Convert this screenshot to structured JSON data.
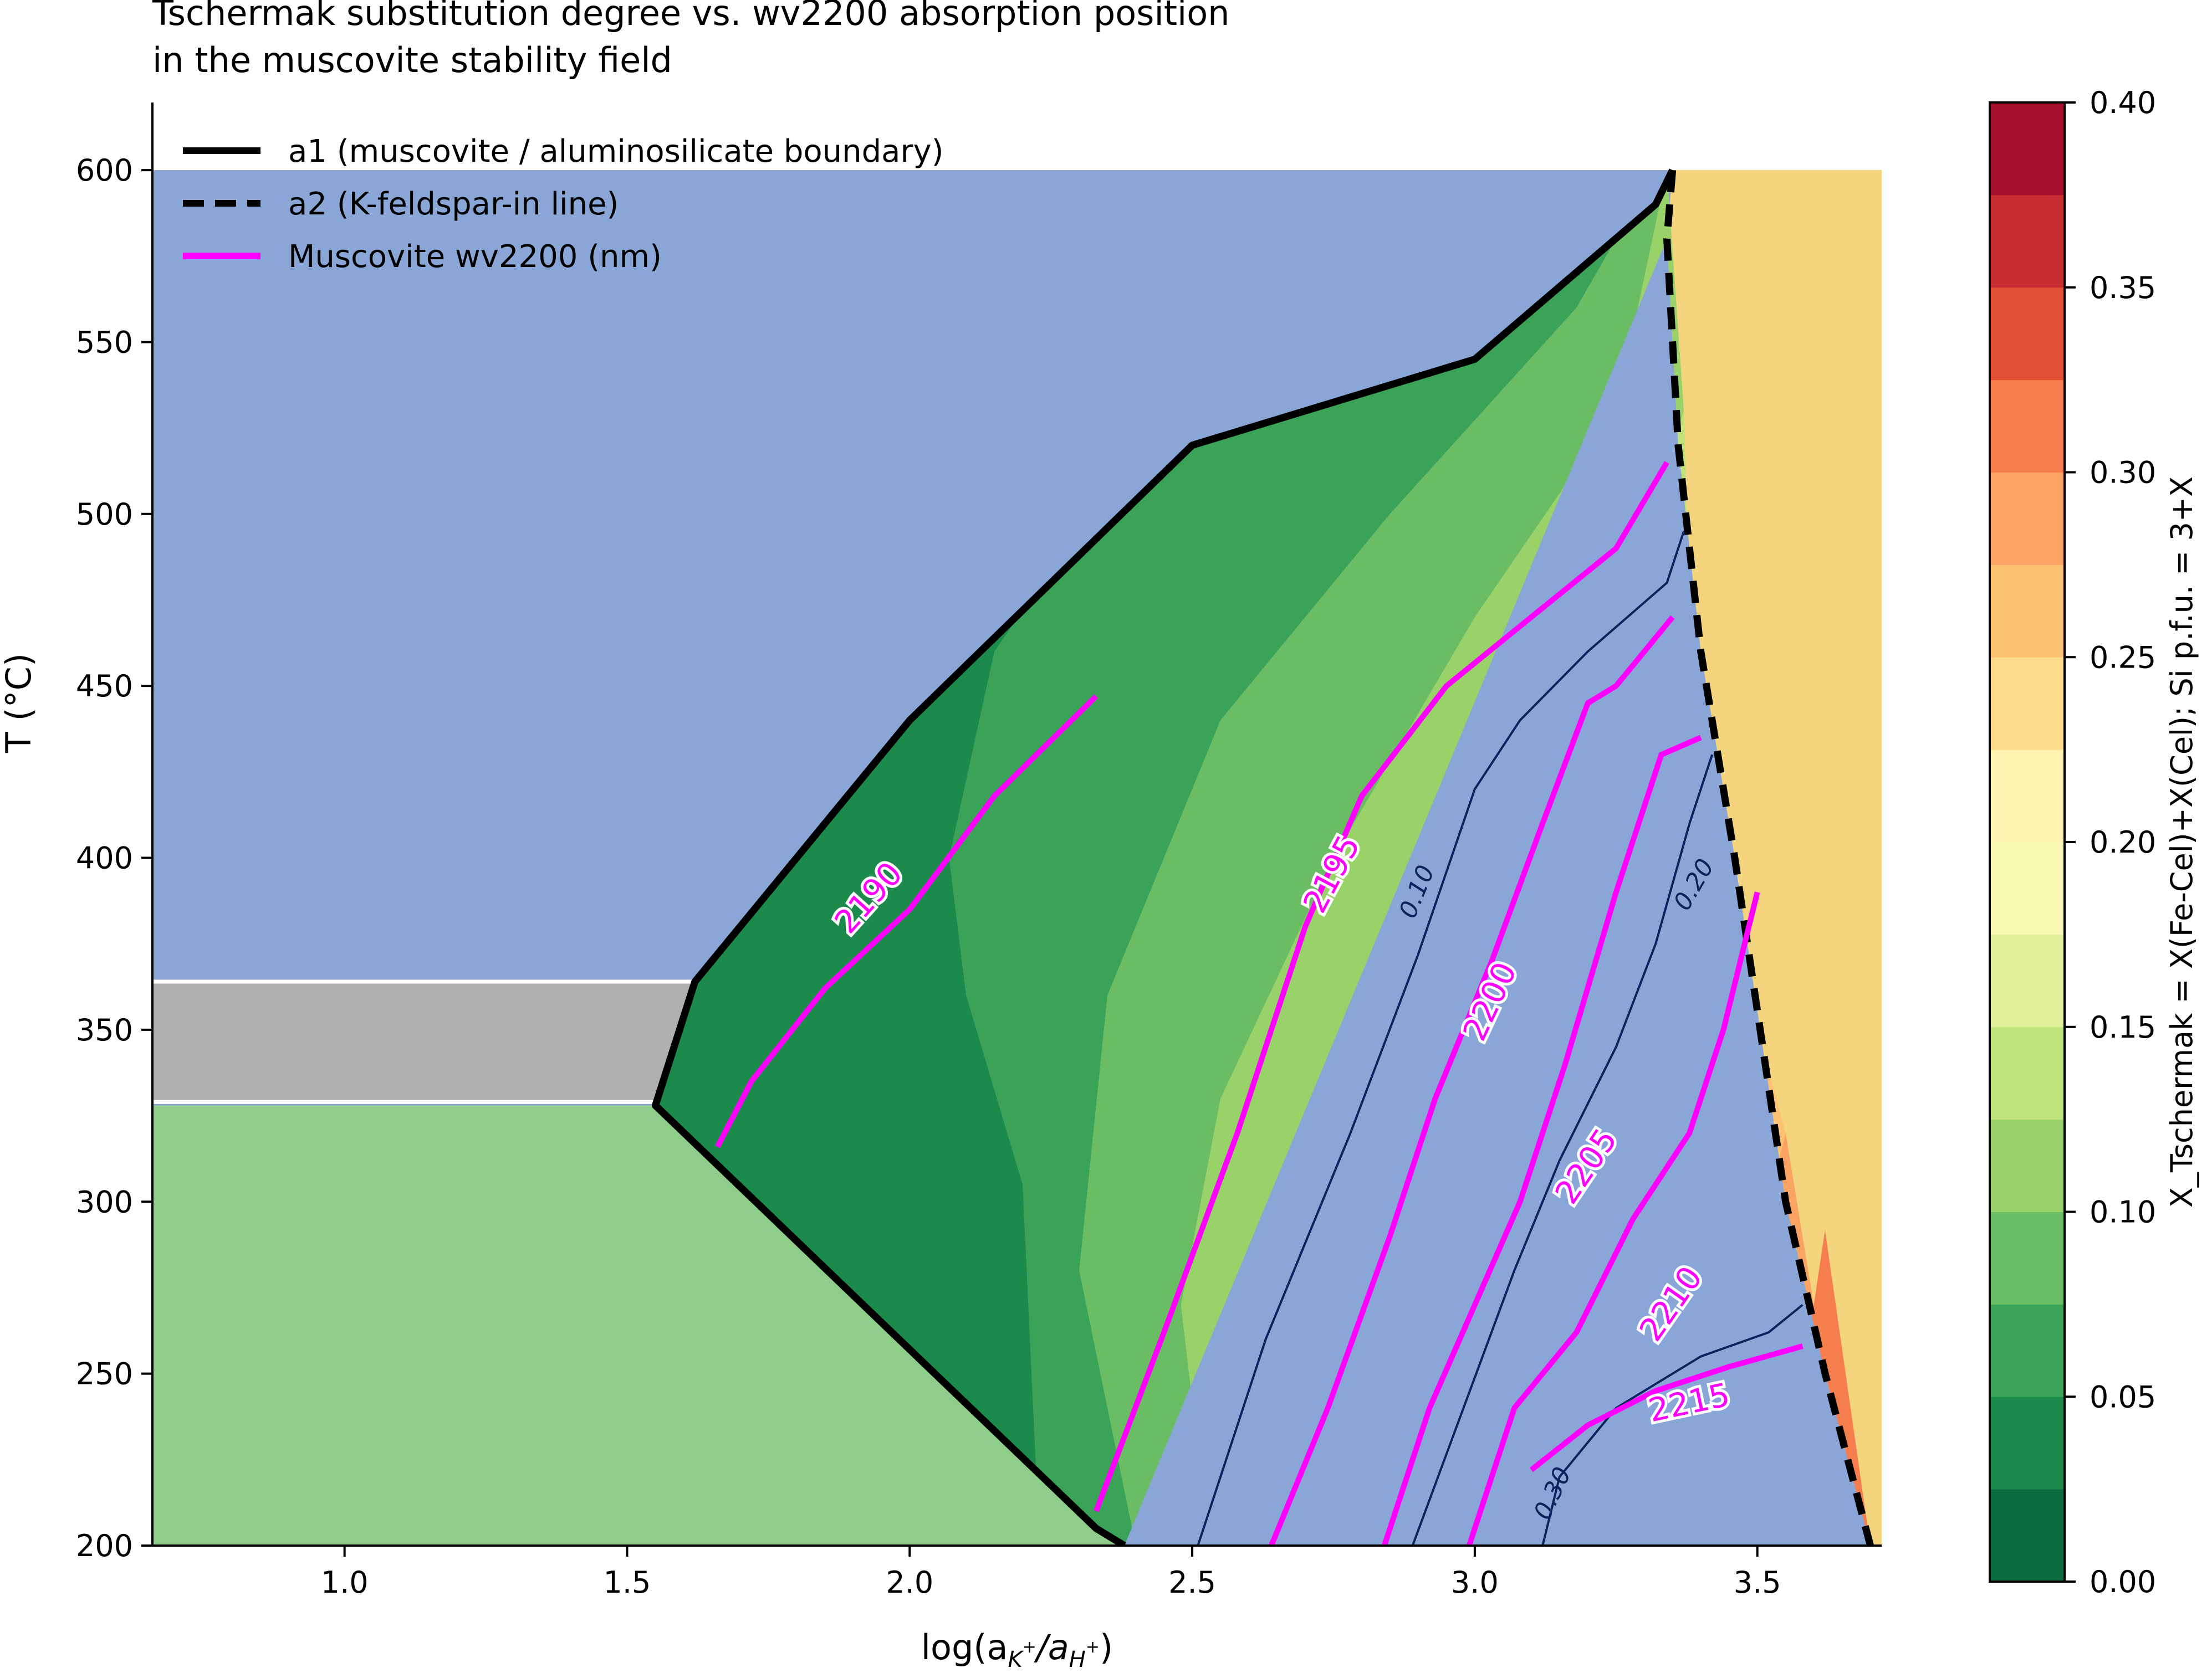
{
  "chart_data": {
    "type": "contour",
    "title_lines": [
      "Tschermak substitution degree vs. wv2200 absorption position",
      "in the muscovite stability field"
    ],
    "xlabel": "log(a",
    "xlabel_sub1": "K",
    "xlabel_mid": "/a",
    "xlabel_sub2": "H",
    "xlabel_end": ")",
    "xlabel_sup": "+",
    "ylabel": "T (°C)",
    "xlim": [
      0.66,
      3.72
    ],
    "ylim": [
      200,
      610
    ],
    "xticks": [
      1.0,
      1.5,
      2.0,
      2.5,
      3.0,
      3.5
    ],
    "xtick_labels": [
      "1.0",
      "1.5",
      "2.0",
      "2.5",
      "3.0",
      "3.5"
    ],
    "yticks": [
      200,
      250,
      300,
      350,
      400,
      450,
      500,
      550,
      600
    ],
    "ytick_labels": [
      "200",
      "250",
      "300",
      "350",
      "400",
      "450",
      "500",
      "550",
      "600"
    ],
    "grid": false,
    "legend_position": "top-left",
    "legend": [
      {
        "label": "a1 (muscovite / aluminosilicate boundary)",
        "style": "solid",
        "color": "#000000"
      },
      {
        "label": "a2 (K-feldspar-in line)",
        "style": "dashed",
        "color": "#000000"
      },
      {
        "label": "Muscovite wv2200 (nm)",
        "style": "solid",
        "color": "#ff00ff"
      }
    ],
    "background_fields": {
      "aluminosilicate_color": "#8aa6d6",
      "gray_band_color": "#b0b0b0",
      "gray_band_T": [
        329,
        364
      ],
      "kaolinite_side_color": "#8ece8a",
      "kfeldspar_color": "#f4d47c"
    },
    "boundary_a1": [
      [
        2.38,
        200
      ],
      [
        2.33,
        205
      ],
      [
        1.55,
        328
      ],
      [
        1.62,
        364
      ],
      [
        2.0,
        440
      ],
      [
        2.5,
        520
      ],
      [
        3.0,
        545
      ],
      [
        3.32,
        590
      ],
      [
        3.35,
        600
      ]
    ],
    "boundary_a2": [
      [
        3.35,
        600
      ],
      [
        3.34,
        580
      ],
      [
        3.36,
        520
      ],
      [
        3.4,
        460
      ],
      [
        3.46,
        400
      ],
      [
        3.55,
        300
      ],
      [
        3.62,
        250
      ],
      [
        3.7,
        200
      ]
    ],
    "wv2200_isolines": [
      {
        "label": "2190",
        "points": [
          [
            1.66,
            316
          ],
          [
            1.72,
            335
          ],
          [
            1.85,
            362
          ],
          [
            2.0,
            385
          ],
          [
            2.15,
            418
          ],
          [
            2.33,
            447
          ]
        ]
      },
      {
        "label": "2195",
        "points": [
          [
            2.33,
            210
          ],
          [
            2.45,
            262
          ],
          [
            2.58,
            320
          ],
          [
            2.7,
            380
          ],
          [
            2.8,
            418
          ],
          [
            2.95,
            450
          ],
          [
            3.1,
            470
          ],
          [
            3.25,
            490
          ],
          [
            3.34,
            515
          ]
        ]
      },
      {
        "label": "2200",
        "points": [
          [
            2.64,
            200
          ],
          [
            2.74,
            240
          ],
          [
            2.85,
            290
          ],
          [
            2.93,
            330
          ],
          [
            3.03,
            370
          ],
          [
            3.12,
            410
          ],
          [
            3.2,
            445
          ],
          [
            3.25,
            450
          ],
          [
            3.35,
            470
          ]
        ]
      },
      {
        "label": "2205",
        "points": [
          [
            2.84,
            200
          ],
          [
            2.92,
            240
          ],
          [
            3.0,
            270
          ],
          [
            3.08,
            300
          ],
          [
            3.16,
            340
          ],
          [
            3.25,
            390
          ],
          [
            3.33,
            430
          ],
          [
            3.4,
            435
          ]
        ]
      },
      {
        "label": "2210",
        "points": [
          [
            2.99,
            200
          ],
          [
            3.07,
            240
          ],
          [
            3.18,
            262
          ],
          [
            3.28,
            295
          ],
          [
            3.38,
            320
          ],
          [
            3.44,
            350
          ],
          [
            3.5,
            390
          ]
        ]
      },
      {
        "label": "2215",
        "points": [
          [
            3.1,
            222
          ],
          [
            3.2,
            235
          ],
          [
            3.32,
            245
          ],
          [
            3.45,
            252
          ],
          [
            3.58,
            258
          ]
        ]
      }
    ],
    "tschermak_isolines": [
      {
        "label": "0.10",
        "points": [
          [
            2.51,
            200
          ],
          [
            2.63,
            260
          ],
          [
            2.78,
            320
          ],
          [
            2.9,
            372
          ],
          [
            3.0,
            420
          ],
          [
            3.08,
            440
          ],
          [
            3.2,
            460
          ],
          [
            3.34,
            480
          ],
          [
            3.37,
            495
          ]
        ]
      },
      {
        "label": "0.20",
        "points": [
          [
            2.89,
            200
          ],
          [
            2.98,
            240
          ],
          [
            3.07,
            280
          ],
          [
            3.15,
            312
          ],
          [
            3.25,
            345
          ],
          [
            3.32,
            375
          ],
          [
            3.38,
            410
          ],
          [
            3.42,
            430
          ]
        ]
      },
      {
        "label": "0.30",
        "points": [
          [
            3.12,
            200
          ],
          [
            3.15,
            220
          ],
          [
            3.25,
            240
          ],
          [
            3.4,
            255
          ],
          [
            3.52,
            262
          ],
          [
            3.58,
            270
          ]
        ]
      }
    ],
    "colorbar": {
      "label": "X_Tschermak = X(Fe-Cel)+X(Cel);  Si p.f.u. = 3+X",
      "min": 0.0,
      "max": 0.4,
      "step": 0.025,
      "ticks": [
        0.0,
        0.05,
        0.1,
        0.15,
        0.2,
        0.25,
        0.3,
        0.35,
        0.4
      ],
      "tick_labels": [
        "0.00",
        "0.05",
        "0.10",
        "0.15",
        "0.20",
        "0.25",
        "0.30",
        "0.35",
        "0.40"
      ],
      "colors": [
        "#0d6b40",
        "#1b8a4b",
        "#3aa357",
        "#6abd63",
        "#98d268",
        "#bfe27a",
        "#dff098",
        "#f6f8b4",
        "#fff3af",
        "#fddc8b",
        "#fdc172",
        "#fba363",
        "#f67d4d",
        "#e25036",
        "#c72c30",
        "#a50f2e"
      ]
    }
  }
}
